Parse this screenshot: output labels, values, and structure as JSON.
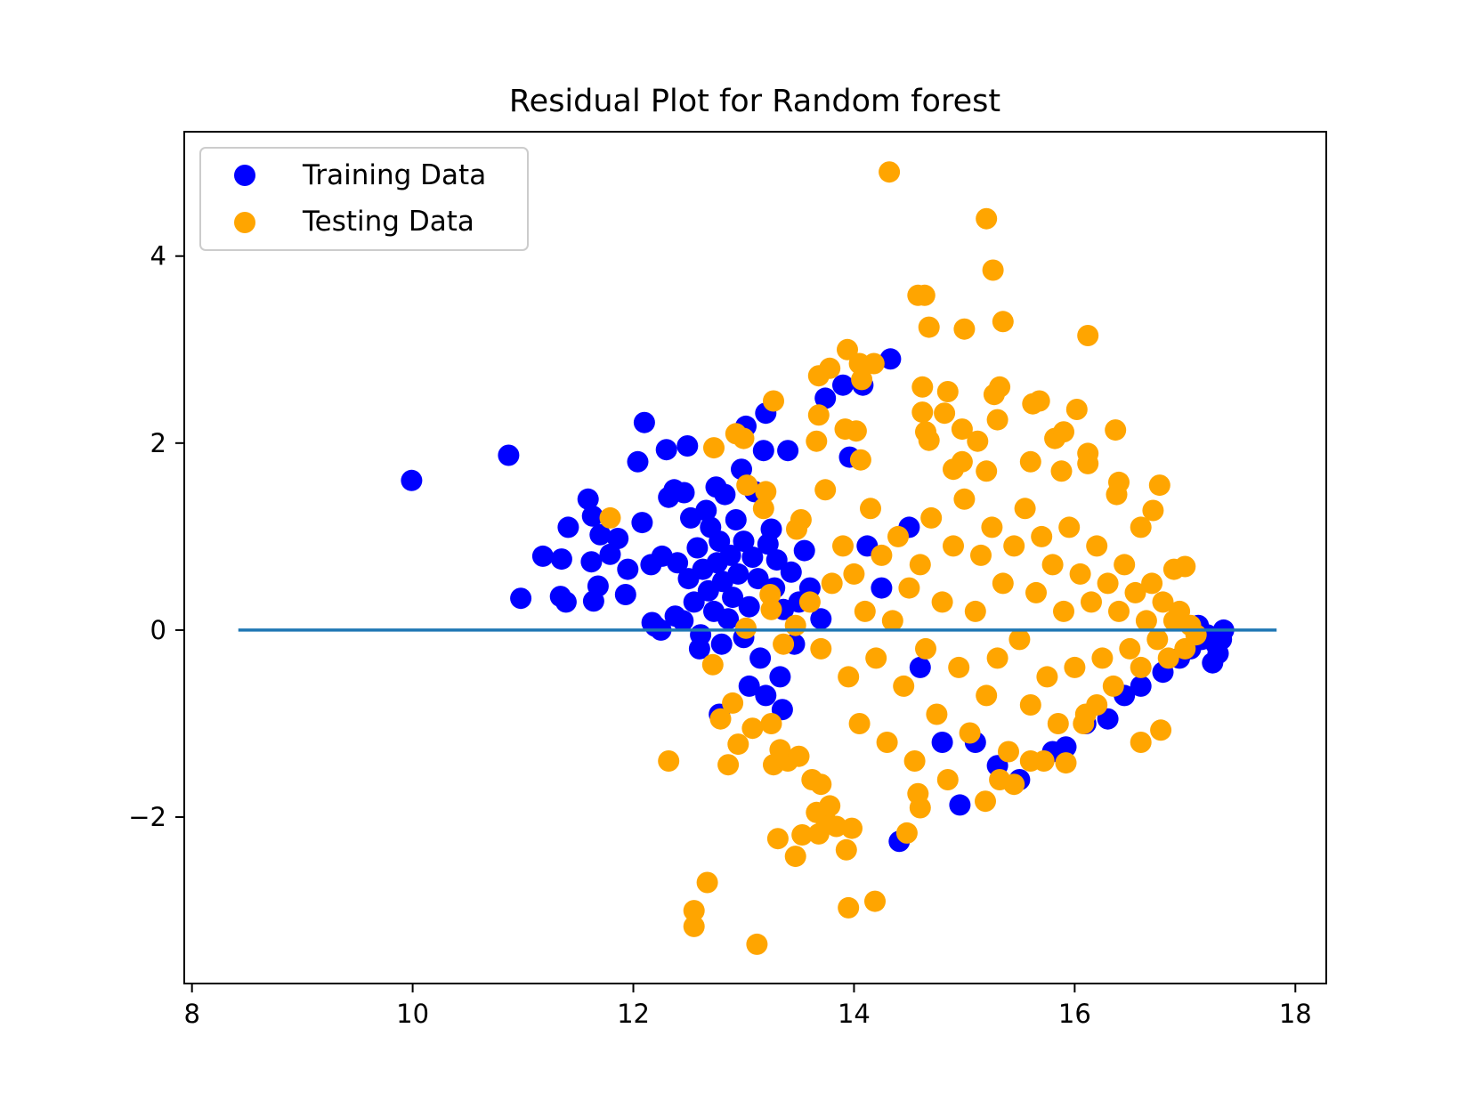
{
  "chart_data": {
    "type": "scatter",
    "title": "Residual Plot for Random forest",
    "xlabel": "",
    "ylabel": "",
    "xlim": [
      7.93,
      18.28
    ],
    "ylim": [
      -3.78,
      5.33
    ],
    "xticks": [
      8,
      10,
      12,
      14,
      16,
      18
    ],
    "yticks": [
      -2,
      0,
      2,
      4
    ],
    "xtick_labels": [
      "8",
      "10",
      "12",
      "14",
      "16",
      "18"
    ],
    "ytick_labels": [
      "−2",
      "0",
      "2",
      "4"
    ],
    "grid": false,
    "legend_position": "upper-left",
    "hline": {
      "y": 0,
      "xmin": 8.42,
      "xmax": 17.83,
      "color": "#1f77b4"
    },
    "series": [
      {
        "name": "Training Data",
        "color": "#0000ff",
        "points": [
          [
            9.99,
            1.6
          ],
          [
            10.87,
            1.87
          ],
          [
            10.98,
            0.34
          ],
          [
            11.18,
            0.79
          ],
          [
            11.34,
            0.36
          ],
          [
            11.35,
            0.76
          ],
          [
            11.39,
            0.3
          ],
          [
            11.41,
            1.1
          ],
          [
            11.59,
            1.4
          ],
          [
            11.62,
            0.73
          ],
          [
            11.63,
            1.22
          ],
          [
            11.64,
            0.31
          ],
          [
            11.68,
            0.47
          ],
          [
            11.7,
            1.02
          ],
          [
            11.79,
            0.81
          ],
          [
            11.86,
            0.98
          ],
          [
            11.93,
            0.38
          ],
          [
            11.95,
            0.65
          ],
          [
            12.04,
            1.8
          ],
          [
            12.08,
            1.15
          ],
          [
            12.1,
            2.22
          ],
          [
            12.16,
            0.7
          ],
          [
            12.17,
            0.08
          ],
          [
            12.26,
            0.79
          ],
          [
            12.3,
            1.93
          ],
          [
            12.32,
            1.42
          ],
          [
            12.37,
            1.5
          ],
          [
            12.38,
            0.15
          ],
          [
            12.4,
            0.72
          ],
          [
            12.46,
            1.47
          ],
          [
            12.49,
            1.97
          ],
          [
            12.5,
            0.55
          ],
          [
            12.52,
            1.2
          ],
          [
            12.55,
            0.3
          ],
          [
            12.58,
            0.88
          ],
          [
            12.61,
            -0.05
          ],
          [
            12.63,
            0.65
          ],
          [
            12.66,
            1.28
          ],
          [
            12.68,
            0.42
          ],
          [
            12.7,
            1.1
          ],
          [
            12.73,
            0.2
          ],
          [
            12.75,
            1.53
          ],
          [
            12.76,
            0.72
          ],
          [
            12.78,
            0.95
          ],
          [
            12.81,
            0.52
          ],
          [
            12.83,
            1.45
          ],
          [
            12.86,
            0.12
          ],
          [
            12.88,
            0.8
          ],
          [
            12.9,
            0.35
          ],
          [
            12.93,
            1.18
          ],
          [
            12.95,
            0.6
          ],
          [
            12.98,
            1.72
          ],
          [
            13.0,
            0.95
          ],
          [
            13.02,
            2.18
          ],
          [
            13.05,
            0.25
          ],
          [
            13.08,
            0.78
          ],
          [
            13.1,
            1.48
          ],
          [
            13.13,
            0.55
          ],
          [
            13.15,
            -0.3
          ],
          [
            13.18,
            1.92
          ],
          [
            13.2,
            2.32
          ],
          [
            13.22,
            0.92
          ],
          [
            13.25,
            1.08
          ],
          [
            13.28,
            0.45
          ],
          [
            13.3,
            0.75
          ],
          [
            13.33,
            -0.5
          ],
          [
            13.36,
            0.22
          ],
          [
            13.4,
            1.92
          ],
          [
            13.43,
            0.62
          ],
          [
            13.46,
            -0.15
          ],
          [
            13.5,
            0.3
          ],
          [
            13.55,
            0.85
          ],
          [
            13.6,
            0.45
          ],
          [
            13.7,
            0.12
          ],
          [
            13.74,
            2.48
          ],
          [
            13.9,
            2.62
          ],
          [
            13.96,
            1.85
          ],
          [
            14.08,
            2.62
          ],
          [
            14.12,
            0.9
          ],
          [
            14.25,
            0.45
          ],
          [
            14.33,
            2.9
          ],
          [
            14.41,
            -2.26
          ],
          [
            14.5,
            1.1
          ],
          [
            14.6,
            -0.4
          ],
          [
            14.8,
            -1.2
          ],
          [
            14.96,
            -1.87
          ],
          [
            15.1,
            -1.2
          ],
          [
            15.3,
            -1.45
          ],
          [
            15.5,
            -1.6
          ],
          [
            15.8,
            -1.3
          ],
          [
            15.92,
            -1.25
          ],
          [
            16.1,
            -1.0
          ],
          [
            16.3,
            -0.95
          ],
          [
            16.45,
            -0.7
          ],
          [
            16.6,
            -0.6
          ],
          [
            16.8,
            -0.45
          ],
          [
            16.95,
            -0.3
          ],
          [
            17.05,
            -0.2
          ],
          [
            17.12,
            0.05
          ],
          [
            17.15,
            -0.1
          ],
          [
            17.2,
            -0.05
          ],
          [
            17.25,
            -0.35
          ],
          [
            17.28,
            -0.15
          ],
          [
            17.3,
            -0.25
          ],
          [
            17.33,
            -0.1
          ],
          [
            17.35,
            0.0
          ],
          [
            12.45,
            0.1
          ],
          [
            12.25,
            0.0
          ],
          [
            12.2,
            0.04
          ],
          [
            12.6,
            -0.2
          ],
          [
            12.8,
            -0.15
          ],
          [
            13.0,
            -0.08
          ],
          [
            12.78,
            -0.9
          ],
          [
            13.05,
            -0.6
          ],
          [
            13.2,
            -0.7
          ],
          [
            13.35,
            -0.85
          ]
        ]
      },
      {
        "name": "Testing Data",
        "color": "#ffa500",
        "points": [
          [
            14.32,
            4.9
          ],
          [
            15.2,
            4.4
          ],
          [
            15.26,
            3.85
          ],
          [
            14.58,
            3.58
          ],
          [
            14.64,
            3.58
          ],
          [
            14.68,
            3.24
          ],
          [
            15.0,
            3.22
          ],
          [
            15.35,
            3.3
          ],
          [
            16.12,
            3.15
          ],
          [
            13.94,
            3.0
          ],
          [
            14.05,
            2.85
          ],
          [
            13.78,
            2.8
          ],
          [
            13.68,
            2.72
          ],
          [
            14.18,
            2.85
          ],
          [
            14.07,
            2.68
          ],
          [
            14.62,
            2.6
          ],
          [
            14.85,
            2.55
          ],
          [
            15.32,
            2.6
          ],
          [
            15.27,
            2.52
          ],
          [
            15.62,
            2.42
          ],
          [
            15.68,
            2.45
          ],
          [
            15.3,
            2.25
          ],
          [
            14.62,
            2.33
          ],
          [
            14.82,
            2.32
          ],
          [
            16.02,
            2.36
          ],
          [
            13.68,
            2.3
          ],
          [
            13.92,
            2.15
          ],
          [
            14.02,
            2.13
          ],
          [
            14.65,
            2.12
          ],
          [
            14.68,
            2.03
          ],
          [
            14.98,
            2.15
          ],
          [
            15.12,
            2.02
          ],
          [
            15.82,
            2.05
          ],
          [
            15.9,
            2.12
          ],
          [
            16.37,
            2.14
          ],
          [
            13.27,
            2.45
          ],
          [
            12.93,
            2.1
          ],
          [
            13.0,
            2.05
          ],
          [
            12.73,
            1.95
          ],
          [
            13.66,
            2.02
          ],
          [
            14.06,
            1.82
          ],
          [
            14.9,
            1.72
          ],
          [
            14.98,
            1.8
          ],
          [
            15.2,
            1.7
          ],
          [
            15.6,
            1.8
          ],
          [
            15.88,
            1.7
          ],
          [
            16.12,
            1.89
          ],
          [
            16.12,
            1.78
          ],
          [
            16.77,
            1.55
          ],
          [
            16.4,
            1.58
          ],
          [
            16.38,
            1.45
          ],
          [
            16.71,
            1.28
          ],
          [
            16.6,
            1.1
          ],
          [
            16.9,
            0.65
          ],
          [
            17.0,
            0.68
          ],
          [
            13.03,
            1.55
          ],
          [
            13.18,
            1.3
          ],
          [
            13.2,
            1.48
          ],
          [
            13.52,
            1.18
          ],
          [
            13.48,
            1.08
          ],
          [
            13.74,
            1.5
          ],
          [
            11.79,
            1.2
          ],
          [
            12.32,
            -1.4
          ],
          [
            12.72,
            -0.37
          ],
          [
            12.79,
            -0.95
          ],
          [
            12.9,
            -0.78
          ],
          [
            12.86,
            -1.44
          ],
          [
            12.95,
            -1.22
          ],
          [
            13.08,
            -1.05
          ],
          [
            13.25,
            -1.0
          ],
          [
            13.27,
            -1.44
          ],
          [
            13.33,
            -1.28
          ],
          [
            13.4,
            -1.4
          ],
          [
            13.5,
            -1.35
          ],
          [
            13.62,
            -1.6
          ],
          [
            13.66,
            -1.95
          ],
          [
            13.68,
            -2.18
          ],
          [
            13.7,
            -1.65
          ],
          [
            13.75,
            -2.05
          ],
          [
            13.78,
            -1.88
          ],
          [
            13.84,
            -2.1
          ],
          [
            13.93,
            -2.35
          ],
          [
            13.98,
            -2.12
          ],
          [
            13.95,
            -2.97
          ],
          [
            14.19,
            -2.9
          ],
          [
            14.48,
            -2.17
          ],
          [
            14.58,
            -1.75
          ],
          [
            14.6,
            -1.9
          ],
          [
            15.19,
            -1.83
          ],
          [
            15.32,
            -1.6
          ],
          [
            15.45,
            -1.65
          ],
          [
            15.6,
            -1.4
          ],
          [
            15.72,
            -1.4
          ],
          [
            15.92,
            -1.42
          ],
          [
            16.6,
            -1.2
          ],
          [
            16.78,
            -1.07
          ],
          [
            16.08,
            -1.0
          ],
          [
            16.2,
            -0.8
          ],
          [
            12.55,
            -3.0
          ],
          [
            12.55,
            -3.17
          ],
          [
            12.67,
            -2.7
          ],
          [
            13.12,
            -3.36
          ],
          [
            13.31,
            -2.23
          ],
          [
            13.47,
            -2.42
          ],
          [
            13.53,
            -2.19
          ],
          [
            13.02,
            0.02
          ],
          [
            13.24,
            0.38
          ],
          [
            13.25,
            0.22
          ],
          [
            13.36,
            -0.15
          ],
          [
            13.47,
            0.05
          ],
          [
            13.6,
            0.3
          ],
          [
            13.7,
            -0.2
          ],
          [
            13.8,
            0.5
          ],
          [
            13.9,
            0.9
          ],
          [
            13.95,
            -0.5
          ],
          [
            14.0,
            0.6
          ],
          [
            14.05,
            -1.0
          ],
          [
            14.1,
            0.2
          ],
          [
            14.15,
            1.3
          ],
          [
            14.2,
            -0.3
          ],
          [
            14.25,
            0.8
          ],
          [
            14.3,
            -1.2
          ],
          [
            14.35,
            0.1
          ],
          [
            14.4,
            1.0
          ],
          [
            14.45,
            -0.6
          ],
          [
            14.5,
            0.45
          ],
          [
            14.55,
            -1.4
          ],
          [
            14.6,
            0.7
          ],
          [
            14.65,
            -0.2
          ],
          [
            14.7,
            1.2
          ],
          [
            14.75,
            -0.9
          ],
          [
            14.8,
            0.3
          ],
          [
            14.85,
            -1.6
          ],
          [
            14.9,
            0.9
          ],
          [
            14.95,
            -0.4
          ],
          [
            15.0,
            1.4
          ],
          [
            15.05,
            -1.1
          ],
          [
            15.1,
            0.2
          ],
          [
            15.15,
            0.8
          ],
          [
            15.2,
            -0.7
          ],
          [
            15.25,
            1.1
          ],
          [
            15.3,
            -0.3
          ],
          [
            15.35,
            0.5
          ],
          [
            15.4,
            -1.3
          ],
          [
            15.45,
            0.9
          ],
          [
            15.5,
            -0.1
          ],
          [
            15.55,
            1.3
          ],
          [
            15.6,
            -0.8
          ],
          [
            15.65,
            0.4
          ],
          [
            15.7,
            1.0
          ],
          [
            15.75,
            -0.5
          ],
          [
            15.8,
            0.7
          ],
          [
            15.85,
            -1.0
          ],
          [
            15.9,
            0.2
          ],
          [
            15.95,
            1.1
          ],
          [
            16.0,
            -0.4
          ],
          [
            16.05,
            0.6
          ],
          [
            16.1,
            -0.9
          ],
          [
            16.15,
            0.3
          ],
          [
            16.2,
            0.9
          ],
          [
            16.25,
            -0.3
          ],
          [
            16.3,
            0.5
          ],
          [
            16.35,
            -0.6
          ],
          [
            16.4,
            0.2
          ],
          [
            16.45,
            0.7
          ],
          [
            16.5,
            -0.2
          ],
          [
            16.55,
            0.4
          ],
          [
            16.6,
            -0.4
          ],
          [
            16.65,
            0.1
          ],
          [
            16.7,
            0.5
          ],
          [
            16.75,
            -0.1
          ],
          [
            16.8,
            0.3
          ],
          [
            16.85,
            -0.3
          ],
          [
            16.9,
            0.1
          ],
          [
            16.95,
            0.2
          ],
          [
            17.0,
            -0.2
          ],
          [
            17.05,
            0.05
          ],
          [
            17.1,
            -0.05
          ]
        ]
      }
    ]
  }
}
